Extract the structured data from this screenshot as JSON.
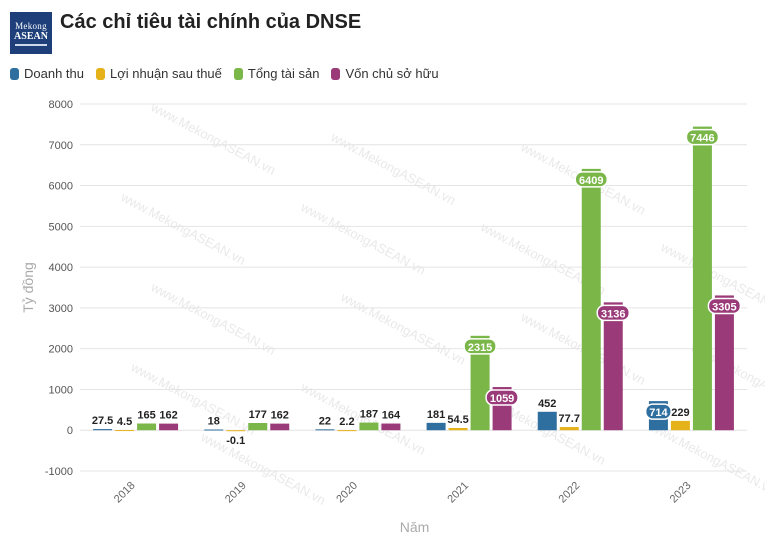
{
  "header": {
    "logo_line1": "Mekong",
    "logo_line2": "ASEAN",
    "title": "Các chỉ tiêu tài chính của DNSE"
  },
  "watermark": "www.MekongASEAN.vn",
  "chart_data": {
    "type": "bar",
    "title": "Các chỉ tiêu tài chính của DNSE",
    "xlabel": "Năm",
    "ylabel": "Tỷ đồng",
    "ylim": [
      -1000,
      8000
    ],
    "yticks": [
      -1000,
      0,
      1000,
      2000,
      3000,
      4000,
      5000,
      6000,
      7000,
      8000
    ],
    "grid": true,
    "legend_position": "top-left",
    "categories": [
      "2018",
      "2019",
      "2020",
      "2021",
      "2022",
      "2023"
    ],
    "series": [
      {
        "name": "Doanh thu",
        "color": "#2f6f9f",
        "values": [
          27.5,
          18,
          22,
          181,
          452,
          714
        ],
        "labels": [
          "27.5",
          "18",
          "22",
          "181",
          "452",
          "714"
        ]
      },
      {
        "name": "Lợi nhuận sau thuế",
        "color": "#e6b21a",
        "values": [
          4.5,
          -0.1,
          2.2,
          54.5,
          77.7,
          229
        ],
        "labels": [
          "4.5",
          "-0.1",
          "2.2",
          "54.5",
          "77.7",
          "229"
        ]
      },
      {
        "name": "Tổng tài sản",
        "color": "#7ab648",
        "values": [
          165,
          177,
          187,
          2315,
          6409,
          7446
        ],
        "labels": [
          "165",
          "177",
          "187",
          "2315",
          "6409",
          "7446"
        ]
      },
      {
        "name": "Vốn chủ sở hữu",
        "color": "#9a3a78",
        "values": [
          162,
          162,
          164,
          1059,
          3136,
          3305
        ],
        "labels": [
          "162",
          "162",
          "164",
          "1059",
          "3136",
          "3305"
        ]
      }
    ]
  }
}
